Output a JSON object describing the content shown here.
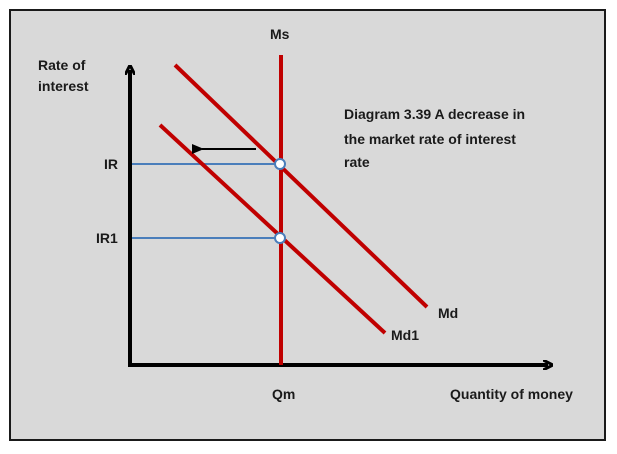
{
  "diagram": {
    "caption_lines": [
      "Diagram 3.39  A decrease in",
      "the market rate of interest",
      "rate"
    ],
    "y_axis_label_lines": [
      "Rate of",
      "interest"
    ],
    "x_axis_label": "Quantity of money",
    "supply_label": "Ms",
    "demand_label": "Md",
    "demand_new_label": "Md1",
    "rate_initial_label": "IR",
    "rate_new_label": "IR1",
    "quantity_label": "Qm",
    "colors": {
      "curves": "#c00000",
      "guides": "#4a7ebb",
      "axes": "#000000",
      "background": "#d9d9d9"
    },
    "shift_direction": "left"
  }
}
